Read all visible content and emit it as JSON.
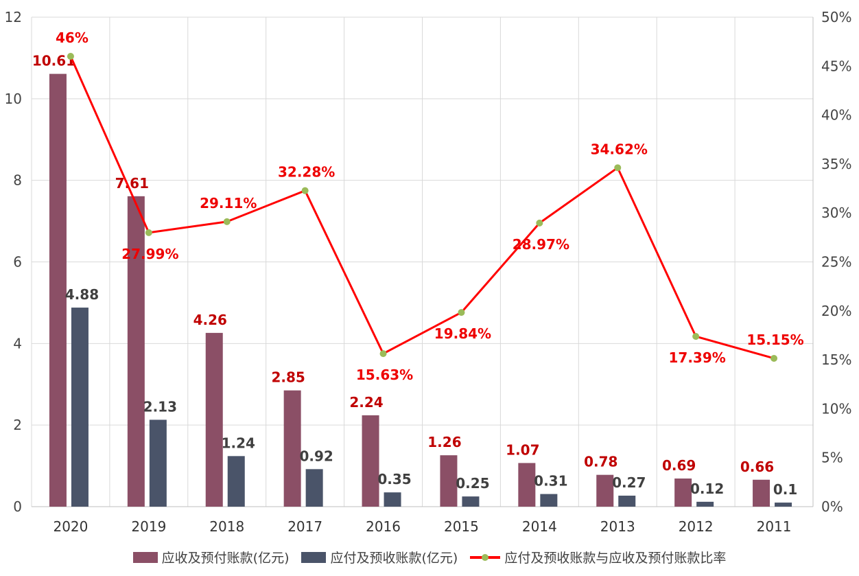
{
  "chart_data": {
    "type": "bar+line",
    "categories": [
      "2020",
      "2019",
      "2018",
      "2017",
      "2016",
      "2015",
      "2014",
      "2013",
      "2012",
      "2011"
    ],
    "series": [
      {
        "name": "应收及预付账款(亿元)",
        "kind": "bar",
        "axis": "left",
        "color": "#8b4f66",
        "values": [
          10.61,
          7.61,
          4.26,
          2.85,
          2.24,
          1.26,
          1.07,
          0.78,
          0.69,
          0.66
        ],
        "labels": [
          "10.61",
          "7.61",
          "4.26",
          "2.85",
          "2.24",
          "1.26",
          "1.07",
          "0.78",
          "0.69",
          "0.66"
        ]
      },
      {
        "name": "应付及预收账款(亿元)",
        "kind": "bar",
        "axis": "left",
        "color": "#4a5469",
        "values": [
          4.88,
          2.13,
          1.24,
          0.92,
          0.35,
          0.25,
          0.31,
          0.27,
          0.12,
          0.1
        ],
        "labels": [
          "4.88",
          "2.13",
          "1.24",
          "0.92",
          "0.35",
          "0.25",
          "0.31",
          "0.27",
          "0.12",
          "0.1"
        ]
      },
      {
        "name": "应付及预收账款与应收及预付账款比率",
        "kind": "line",
        "axis": "right",
        "color": "#ff0000",
        "marker_color": "#9bbb59",
        "values": [
          46,
          27.99,
          29.11,
          32.28,
          15.63,
          19.84,
          28.97,
          34.62,
          17.39,
          15.15
        ],
        "labels": [
          "46%",
          "27.99%",
          "29.11%",
          "32.28%",
          "15.63%",
          "19.84%",
          "28.97%",
          "34.62%",
          "17.39%",
          "15.15%"
        ]
      }
    ],
    "y_left": {
      "min": 0,
      "max": 12,
      "ticks": [
        "0",
        "2",
        "4",
        "6",
        "8",
        "10",
        "12"
      ]
    },
    "y_right": {
      "min": 0,
      "max": 50,
      "ticks": [
        "0%",
        "5%",
        "10%",
        "15%",
        "20%",
        "25%",
        "30%",
        "35%",
        "40%",
        "45%",
        "50%"
      ]
    },
    "grid": true,
    "legend_position": "bottom",
    "title": ""
  },
  "legend": [
    {
      "label": "应收及预付账款(亿元)",
      "color": "#8b4f66"
    },
    {
      "label": "应付及预收账款(亿元)",
      "color": "#4a5469"
    },
    {
      "label": "应付及预收账款与应收及预付账款比率",
      "color": "#ff0000",
      "marker_color": "#9bbb59"
    }
  ]
}
